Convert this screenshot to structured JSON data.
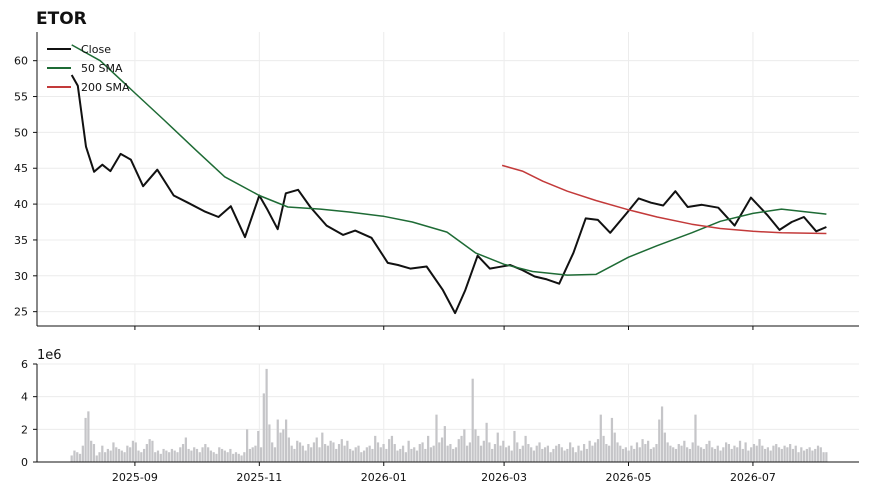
{
  "title": "ETOR",
  "chart_data": [
    {
      "type": "line",
      "panel": "price",
      "ylim": [
        23,
        64
      ],
      "yticks": [
        25,
        30,
        35,
        40,
        45,
        50,
        55,
        60
      ],
      "grid": true,
      "legend_position": "top-left",
      "series": [
        {
          "name": "Close",
          "color": "#111111",
          "x": [
            "2025-08-01",
            "2025-08-04",
            "2025-08-08",
            "2025-08-12",
            "2025-08-16",
            "2025-08-20",
            "2025-08-25",
            "2025-08-30",
            "2025-09-05",
            "2025-09-12",
            "2025-09-20",
            "2025-09-27",
            "2025-10-05",
            "2025-10-12",
            "2025-10-18",
            "2025-10-25",
            "2025-11-01",
            "2025-11-05",
            "2025-11-10",
            "2025-11-14",
            "2025-11-20",
            "2025-11-26",
            "2025-12-04",
            "2025-12-12",
            "2025-12-18",
            "2025-12-26",
            "2026-01-03",
            "2026-01-08",
            "2026-01-14",
            "2026-01-22",
            "2026-01-30",
            "2026-02-05",
            "2026-02-10",
            "2026-02-16",
            "2026-02-22",
            "2026-02-26",
            "2026-03-04",
            "2026-03-10",
            "2026-03-16",
            "2026-03-22",
            "2026-03-28",
            "2026-04-04",
            "2026-04-10",
            "2026-04-16",
            "2026-04-22",
            "2026-04-30",
            "2026-05-06",
            "2026-05-12",
            "2026-05-18",
            "2026-05-24",
            "2026-05-30",
            "2026-06-06",
            "2026-06-14",
            "2026-06-22",
            "2026-06-30",
            "2026-07-08",
            "2026-07-14",
            "2026-07-20",
            "2026-07-26",
            "2026-08-01",
            "2026-08-06"
          ],
          "values": [
            58,
            56.5,
            48,
            44.5,
            45.5,
            44.6,
            47,
            46.2,
            42.5,
            44.8,
            41.2,
            40.2,
            39,
            38.2,
            39.7,
            35.4,
            41.2,
            39.2,
            36.5,
            41.5,
            42,
            39.6,
            37,
            35.7,
            36.3,
            35.3,
            31.8,
            31.5,
            31,
            31.3,
            28,
            24.8,
            28,
            32.8,
            31,
            31.2,
            31.5,
            30.8,
            29.9,
            29.5,
            28.9,
            33.2,
            38,
            37.8,
            36,
            38.7,
            40.8,
            40.2,
            39.8,
            41.8,
            39.6,
            39.9,
            39.5,
            37,
            40.9,
            38.5,
            36.4,
            37.5,
            38.2,
            36.2,
            36.8
          ]
        },
        {
          "name": "50 SMA",
          "color": "#1e6b35",
          "x": [
            "2025-08-01",
            "2025-08-15",
            "2025-09-01",
            "2025-09-15",
            "2025-10-01",
            "2025-10-15",
            "2025-11-01",
            "2025-11-15",
            "2025-12-01",
            "2025-12-15",
            "2026-01-01",
            "2026-01-15",
            "2026-02-01",
            "2026-02-15",
            "2026-03-01",
            "2026-03-15",
            "2026-04-01",
            "2026-04-15",
            "2026-05-01",
            "2026-05-15",
            "2026-06-01",
            "2026-06-15",
            "2026-07-01",
            "2026-07-15",
            "2026-08-06"
          ],
          "values": [
            62.2,
            60,
            55.5,
            51.8,
            47.5,
            43.8,
            41.2,
            39.6,
            39.3,
            38.9,
            38.3,
            37.5,
            36.1,
            33.2,
            31.6,
            30.6,
            30.1,
            30.2,
            32.6,
            34.2,
            36,
            37.6,
            38.7,
            39.3,
            38.6
          ]
        },
        {
          "name": "200 SMA",
          "color": "#c33a3a",
          "x": [
            "2026-02-28",
            "2026-03-10",
            "2026-03-20",
            "2026-04-01",
            "2026-04-15",
            "2026-05-01",
            "2026-05-15",
            "2026-06-01",
            "2026-06-15",
            "2026-07-01",
            "2026-07-15",
            "2026-08-06"
          ],
          "values": [
            45.4,
            44.6,
            43.2,
            41.8,
            40.5,
            39.2,
            38.2,
            37.2,
            36.6,
            36.2,
            36.0,
            35.9
          ]
        }
      ]
    },
    {
      "type": "bar",
      "panel": "volume",
      "offset_label": "1e6",
      "ylim": [
        0,
        6
      ],
      "yticks": [
        0,
        2,
        4,
        6
      ],
      "grid": true,
      "color": "#c5c5c8",
      "x_start": "2025-08-01",
      "x_end": "2026-08-06",
      "values": [
        0.4,
        0.7,
        0.6,
        0.5,
        1.0,
        2.7,
        3.1,
        1.3,
        1.1,
        0.4,
        0.6,
        1.0,
        0.6,
        0.8,
        0.7,
        1.2,
        0.9,
        0.8,
        0.7,
        0.6,
        1.0,
        0.9,
        1.3,
        1.2,
        0.7,
        0.6,
        0.8,
        1.1,
        1.4,
        1.3,
        0.6,
        0.7,
        0.5,
        0.8,
        0.7,
        0.6,
        0.8,
        0.7,
        0.6,
        0.9,
        1.1,
        1.5,
        0.8,
        0.7,
        0.9,
        0.8,
        0.6,
        0.9,
        1.1,
        0.9,
        0.7,
        0.6,
        0.5,
        0.9,
        0.8,
        0.7,
        0.6,
        0.8,
        0.5,
        0.6,
        0.5,
        0.4,
        0.6,
        2.0,
        0.8,
        0.9,
        1.0,
        1.9,
        0.9,
        4.2,
        5.7,
        2.3,
        1.2,
        0.9,
        2.6,
        1.8,
        2.0,
        2.6,
        1.5,
        1.0,
        0.8,
        1.3,
        1.2,
        1.0,
        0.7,
        1.1,
        0.9,
        1.2,
        1.5,
        0.9,
        1.8,
        1.1,
        1.0,
        1.3,
        1.2,
        0.8,
        1.1,
        1.4,
        1.0,
        1.3,
        0.8,
        0.7,
        0.9,
        1.0,
        0.6,
        0.7,
        0.9,
        1.0,
        0.8,
        1.6,
        1.2,
        0.9,
        1.1,
        0.8,
        1.4,
        1.6,
        1.1,
        0.7,
        0.8,
        1.0,
        0.6,
        1.3,
        0.8,
        0.9,
        0.7,
        1.1,
        1.2,
        0.8,
        1.6,
        0.9,
        1.0,
        2.9,
        1.2,
        1.5,
        2.2,
        1.0,
        1.1,
        0.8,
        0.9,
        1.4,
        1.6,
        2.0,
        1.0,
        1.2,
        5.1,
        2.0,
        1.6,
        1.0,
        1.3,
        2.4,
        1.2,
        0.8,
        1.1,
        1.8,
        1.0,
        1.3,
        0.9,
        1.0,
        0.7,
        1.9,
        1.2,
        0.8,
        1.0,
        1.6,
        1.1,
        0.9,
        0.7,
        1.0,
        1.2,
        0.8,
        0.9,
        1.0,
        0.6,
        0.8,
        1.0,
        1.1,
        0.9,
        0.7,
        0.8,
        1.2,
        0.9,
        0.6,
        1.0,
        0.7,
        1.1,
        0.8,
        1.3,
        1.0,
        1.2,
        1.4,
        2.9,
        1.6,
        1.1,
        1.0,
        2.7,
        1.8,
        1.2,
        1.0,
        0.8,
        0.9,
        0.7,
        1.0,
        0.8,
        1.2,
        0.9,
        1.4,
        1.1,
        1.3,
        0.8,
        0.9,
        1.1,
        2.6,
        3.4,
        1.8,
        1.2,
        1.0,
        0.9,
        0.8,
        1.1,
        1.0,
        1.3,
        0.9,
        0.8,
        1.2,
        2.9,
        1.0,
        0.9,
        0.8,
        1.1,
        1.3,
        0.9,
        0.8,
        1.0,
        0.7,
        0.9,
        1.2,
        1.1,
        0.8,
        1.0,
        0.9,
        1.3,
        0.8,
        1.2,
        0.7,
        0.9,
        1.1,
        1.0,
        1.4,
        1.0,
        0.8,
        0.9,
        0.7,
        1.0,
        1.1,
        0.9,
        0.8,
        1.0,
        0.9,
        1.1,
        0.8,
        1.0,
        0.6,
        0.9,
        0.7,
        0.8,
        0.9,
        0.7,
        0.8,
        1.0,
        0.9,
        0.6,
        0.6
      ]
    }
  ],
  "x_axis": {
    "tick_labels": [
      "2025-09",
      "2025-11",
      "2026-01",
      "2026-03",
      "2026-05",
      "2026-07"
    ],
    "tick_dates": [
      "2025-09-01",
      "2025-11-01",
      "2026-01-01",
      "2026-03-01",
      "2026-05-01",
      "2026-07-01"
    ],
    "range": [
      "2025-07-15",
      "2026-08-22"
    ]
  }
}
